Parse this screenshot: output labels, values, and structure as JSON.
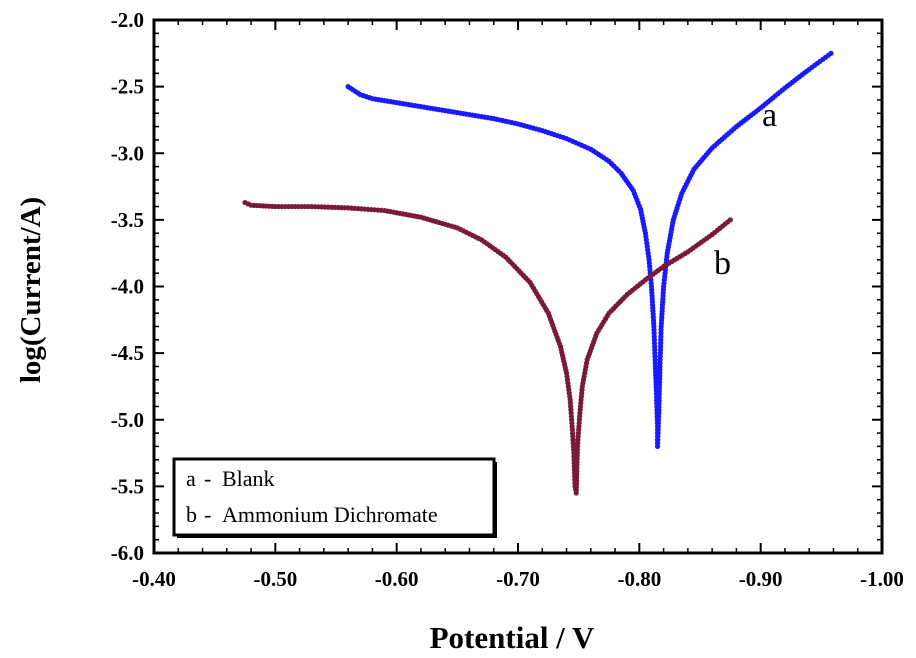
{
  "chart_data": {
    "type": "scatter",
    "title": "",
    "xlabel": "Potential / V",
    "ylabel": "log(Current/A)",
    "xlim": [
      -0.4,
      -1.0
    ],
    "ylim": [
      -6.0,
      -2.0
    ],
    "x_reversed": true,
    "x_ticks": [
      "-0.40",
      "-0.50",
      "-0.60",
      "-0.70",
      "-0.80",
      "-0.90",
      "-1.00"
    ],
    "x_tick_values": [
      -0.4,
      -0.5,
      -0.6,
      -0.7,
      -0.8,
      -0.9,
      -1.0
    ],
    "y_ticks": [
      "-2.0",
      "-2.5",
      "-3.0",
      "-3.5",
      "-4.0",
      "-4.5",
      "-5.0",
      "-5.5",
      "-6.0"
    ],
    "y_tick_values": [
      -2.0,
      -2.5,
      -3.0,
      -3.5,
      -4.0,
      -4.5,
      -5.0,
      -5.5,
      -6.0
    ],
    "grid": false,
    "legend_position": "bottom-left",
    "legend": [
      {
        "key": "a",
        "text": "Blank"
      },
      {
        "key": "b",
        "text": "Ammonium Dichromate"
      }
    ],
    "series": [
      {
        "name": "Blank",
        "label": "a",
        "color": "#1a1aff",
        "points": [
          [
            -0.56,
            -2.5
          ],
          [
            -0.57,
            -2.56
          ],
          [
            -0.58,
            -2.59
          ],
          [
            -0.6,
            -2.62
          ],
          [
            -0.62,
            -2.65
          ],
          [
            -0.64,
            -2.68
          ],
          [
            -0.66,
            -2.71
          ],
          [
            -0.68,
            -2.74
          ],
          [
            -0.7,
            -2.78
          ],
          [
            -0.72,
            -2.83
          ],
          [
            -0.74,
            -2.89
          ],
          [
            -0.76,
            -2.97
          ],
          [
            -0.775,
            -3.06
          ],
          [
            -0.785,
            -3.15
          ],
          [
            -0.795,
            -3.28
          ],
          [
            -0.801,
            -3.42
          ],
          [
            -0.805,
            -3.6
          ],
          [
            -0.808,
            -3.8
          ],
          [
            -0.81,
            -4.0
          ],
          [
            -0.812,
            -4.3
          ],
          [
            -0.813,
            -4.55
          ],
          [
            -0.814,
            -4.78
          ],
          [
            -0.815,
            -5.05
          ],
          [
            -0.815,
            -5.2
          ],
          [
            -0.816,
            -4.95
          ],
          [
            -0.817,
            -4.6
          ],
          [
            -0.818,
            -4.3
          ],
          [
            -0.82,
            -4.0
          ],
          [
            -0.823,
            -3.75
          ],
          [
            -0.828,
            -3.5
          ],
          [
            -0.835,
            -3.3
          ],
          [
            -0.845,
            -3.12
          ],
          [
            -0.86,
            -2.96
          ],
          [
            -0.88,
            -2.8
          ],
          [
            -0.9,
            -2.66
          ],
          [
            -0.92,
            -2.51
          ],
          [
            -0.94,
            -2.37
          ],
          [
            -0.958,
            -2.25
          ]
        ]
      },
      {
        "name": "Ammonium Dichromate",
        "label": "b",
        "color": "#7a1a3a",
        "points": [
          [
            -0.475,
            -3.37
          ],
          [
            -0.48,
            -3.39
          ],
          [
            -0.5,
            -3.4
          ],
          [
            -0.53,
            -3.4
          ],
          [
            -0.56,
            -3.41
          ],
          [
            -0.59,
            -3.43
          ],
          [
            -0.62,
            -3.48
          ],
          [
            -0.65,
            -3.56
          ],
          [
            -0.67,
            -3.65
          ],
          [
            -0.69,
            -3.78
          ],
          [
            -0.71,
            -3.97
          ],
          [
            -0.725,
            -4.2
          ],
          [
            -0.735,
            -4.45
          ],
          [
            -0.74,
            -4.65
          ],
          [
            -0.743,
            -4.85
          ],
          [
            -0.745,
            -5.1
          ],
          [
            -0.746,
            -5.25
          ],
          [
            -0.747,
            -5.5
          ],
          [
            -0.748,
            -5.55
          ],
          [
            -0.749,
            -5.2
          ],
          [
            -0.751,
            -4.95
          ],
          [
            -0.753,
            -4.75
          ],
          [
            -0.757,
            -4.55
          ],
          [
            -0.765,
            -4.35
          ],
          [
            -0.775,
            -4.2
          ],
          [
            -0.79,
            -4.06
          ],
          [
            -0.805,
            -3.95
          ],
          [
            -0.82,
            -3.85
          ],
          [
            -0.84,
            -3.74
          ],
          [
            -0.86,
            -3.61
          ],
          [
            -0.875,
            -3.5
          ]
        ]
      }
    ]
  }
}
